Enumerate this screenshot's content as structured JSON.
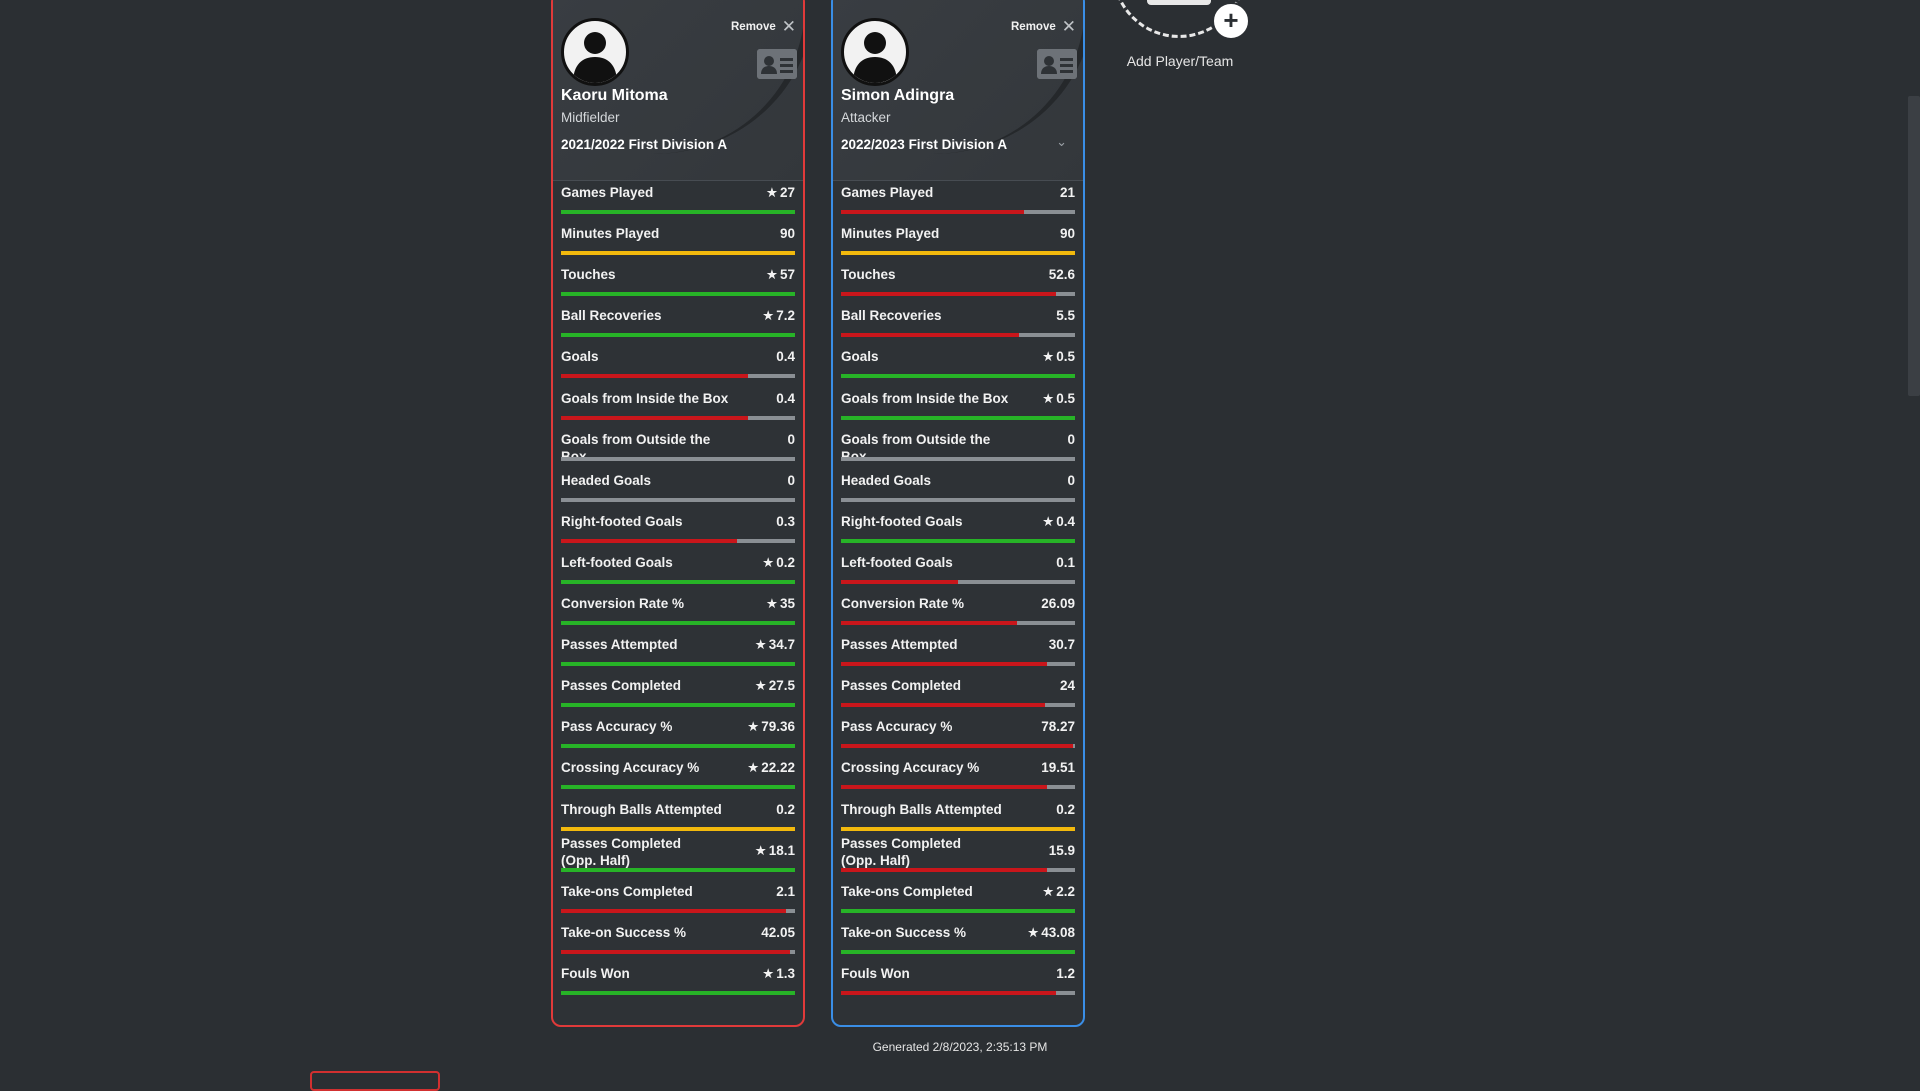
{
  "colors": {
    "green": "#27b327",
    "red": "#c9161b",
    "yellow": "#f2b90d",
    "gray": "#8a8f94",
    "card_border_red": "#e03a3a",
    "card_border_blue": "#3a8ee6"
  },
  "players": [
    {
      "remove_label": "Remove",
      "name": "Kaoru Mitoma",
      "position": "Midfielder",
      "season": "2021/2022 First Division A",
      "stats": [
        {
          "label": "Games Played",
          "value": "27",
          "star": true,
          "color": "green",
          "fill": 1.0
        },
        {
          "label": "Minutes Played",
          "value": "90",
          "star": false,
          "color": "yellow",
          "fill": 1.0
        },
        {
          "label": "Touches",
          "value": "57",
          "star": true,
          "color": "green",
          "fill": 1.0
        },
        {
          "label": "Ball Recoveries",
          "value": "7.2",
          "star": true,
          "color": "green",
          "fill": 1.0
        },
        {
          "label": "Goals",
          "value": "0.4",
          "star": false,
          "color": "red",
          "fill": 0.8
        },
        {
          "label": "Goals from Inside the Box",
          "value": "0.4",
          "star": false,
          "color": "red",
          "fill": 0.8
        },
        {
          "label": "Goals from Outside the Box",
          "value": "0",
          "star": false,
          "color": "gray",
          "fill": 0
        },
        {
          "label": "Headed Goals",
          "value": "0",
          "star": false,
          "color": "gray",
          "fill": 0
        },
        {
          "label": "Right-footed Goals",
          "value": "0.3",
          "star": false,
          "color": "red",
          "fill": 0.75
        },
        {
          "label": "Left-footed Goals",
          "value": "0.2",
          "star": true,
          "color": "green",
          "fill": 1.0
        },
        {
          "label": "Conversion Rate %",
          "value": "35",
          "star": true,
          "color": "green",
          "fill": 1.0
        },
        {
          "label": "Passes Attempted",
          "value": "34.7",
          "star": true,
          "color": "green",
          "fill": 1.0
        },
        {
          "label": "Passes Completed",
          "value": "27.5",
          "star": true,
          "color": "green",
          "fill": 1.0
        },
        {
          "label": "Pass Accuracy %",
          "value": "79.36",
          "star": true,
          "color": "green",
          "fill": 1.0
        },
        {
          "label": "Crossing Accuracy %",
          "value": "22.22",
          "star": true,
          "color": "green",
          "fill": 1.0
        },
        {
          "label": "Through Balls Attempted",
          "value": "0.2",
          "star": false,
          "color": "yellow",
          "fill": 1.0
        },
        {
          "label": "Passes Completed (Opp. Half)",
          "value": "18.1",
          "star": true,
          "color": "green",
          "fill": 1.0,
          "two_line": true
        },
        {
          "label": "Take-ons Completed",
          "value": "2.1",
          "star": false,
          "color": "red",
          "fill": 0.96
        },
        {
          "label": "Take-on Success %",
          "value": "42.05",
          "star": false,
          "color": "red",
          "fill": 0.98
        },
        {
          "label": "Fouls Won",
          "value": "1.3",
          "star": true,
          "color": "green",
          "fill": 1.0
        }
      ]
    },
    {
      "remove_label": "Remove",
      "name": "Simon Adingra",
      "position": "Attacker",
      "season": "2022/2023 First Division A",
      "stats": [
        {
          "label": "Games Played",
          "value": "21",
          "star": false,
          "color": "red",
          "fill": 0.78
        },
        {
          "label": "Minutes Played",
          "value": "90",
          "star": false,
          "color": "yellow",
          "fill": 1.0
        },
        {
          "label": "Touches",
          "value": "52.6",
          "star": false,
          "color": "red",
          "fill": 0.92
        },
        {
          "label": "Ball Recoveries",
          "value": "5.5",
          "star": false,
          "color": "red",
          "fill": 0.76
        },
        {
          "label": "Goals",
          "value": "0.5",
          "star": true,
          "color": "green",
          "fill": 1.0
        },
        {
          "label": "Goals from Inside the Box",
          "value": "0.5",
          "star": true,
          "color": "green",
          "fill": 1.0
        },
        {
          "label": "Goals from Outside the Box",
          "value": "0",
          "star": false,
          "color": "gray",
          "fill": 0
        },
        {
          "label": "Headed Goals",
          "value": "0",
          "star": false,
          "color": "gray",
          "fill": 0
        },
        {
          "label": "Right-footed Goals",
          "value": "0.4",
          "star": true,
          "color": "green",
          "fill": 1.0
        },
        {
          "label": "Left-footed Goals",
          "value": "0.1",
          "star": false,
          "color": "red",
          "fill": 0.5
        },
        {
          "label": "Conversion Rate %",
          "value": "26.09",
          "star": false,
          "color": "red",
          "fill": 0.75
        },
        {
          "label": "Passes Attempted",
          "value": "30.7",
          "star": false,
          "color": "red",
          "fill": 0.88
        },
        {
          "label": "Passes Completed",
          "value": "24",
          "star": false,
          "color": "red",
          "fill": 0.87
        },
        {
          "label": "Pass Accuracy %",
          "value": "78.27",
          "star": false,
          "color": "red",
          "fill": 0.99
        },
        {
          "label": "Crossing Accuracy %",
          "value": "19.51",
          "star": false,
          "color": "red",
          "fill": 0.88
        },
        {
          "label": "Through Balls Attempted",
          "value": "0.2",
          "star": false,
          "color": "yellow",
          "fill": 1.0
        },
        {
          "label": "Passes Completed (Opp. Half)",
          "value": "15.9",
          "star": false,
          "color": "red",
          "fill": 0.88,
          "two_line": true
        },
        {
          "label": "Take-ons Completed",
          "value": "2.2",
          "star": true,
          "color": "green",
          "fill": 1.0
        },
        {
          "label": "Take-on Success %",
          "value": "43.08",
          "star": true,
          "color": "green",
          "fill": 1.0
        },
        {
          "label": "Fouls Won",
          "value": "1.2",
          "star": false,
          "color": "red",
          "fill": 0.92
        }
      ]
    }
  ],
  "add_player": {
    "label": "Add Player/Team"
  },
  "footer": {
    "generated": "Generated 2/8/2023, 2:35:13 PM"
  }
}
